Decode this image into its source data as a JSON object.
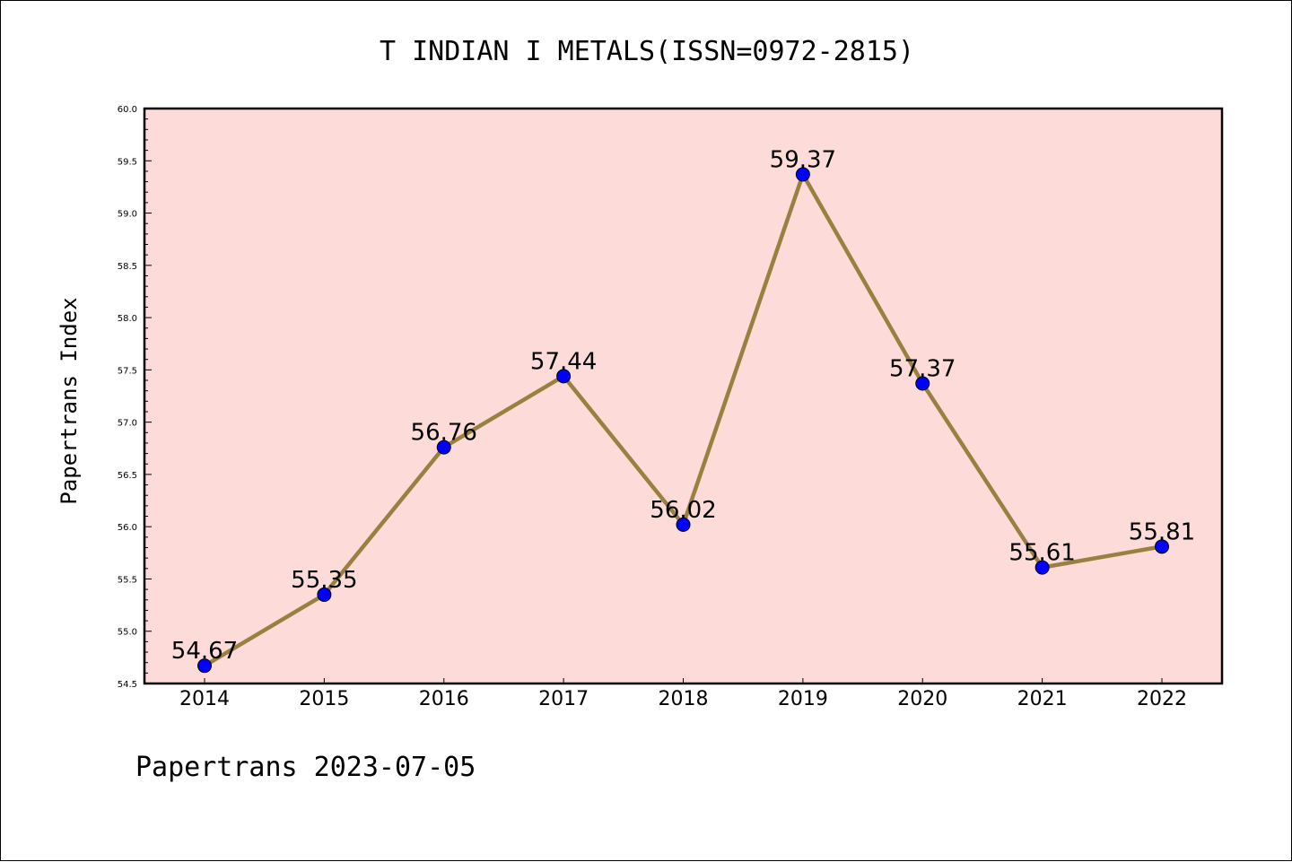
{
  "chart_data": {
    "type": "line",
    "title": "T INDIAN I METALS(ISSN=0972-2815)",
    "xlabel": "",
    "ylabel": "Papertrans Index",
    "footer": "Papertrans 2023-07-05",
    "categories": [
      "2014",
      "2015",
      "2016",
      "2017",
      "2018",
      "2019",
      "2020",
      "2021",
      "2022"
    ],
    "series": [
      {
        "name": "Papertrans Index",
        "values": [
          54.67,
          55.35,
          56.76,
          57.44,
          56.02,
          59.37,
          57.37,
          55.61,
          55.81
        ],
        "labels": [
          "54.67",
          "55.35",
          "56.76",
          "57.44",
          "56.02",
          "59.37",
          "57.37",
          "55.61",
          "55.81"
        ]
      }
    ],
    "ylim": [
      54.5,
      60.0
    ],
    "yticks": [
      "54.5",
      "55.0",
      "55.5",
      "56.0",
      "56.5",
      "57.0",
      "57.5",
      "58.0",
      "58.5",
      "59.0",
      "59.5",
      "60.0"
    ],
    "grid": false,
    "colors": {
      "plot_background": "#fddbd8",
      "line": "#9a8040",
      "marker": "#0000ff",
      "axis": "#000000"
    }
  }
}
